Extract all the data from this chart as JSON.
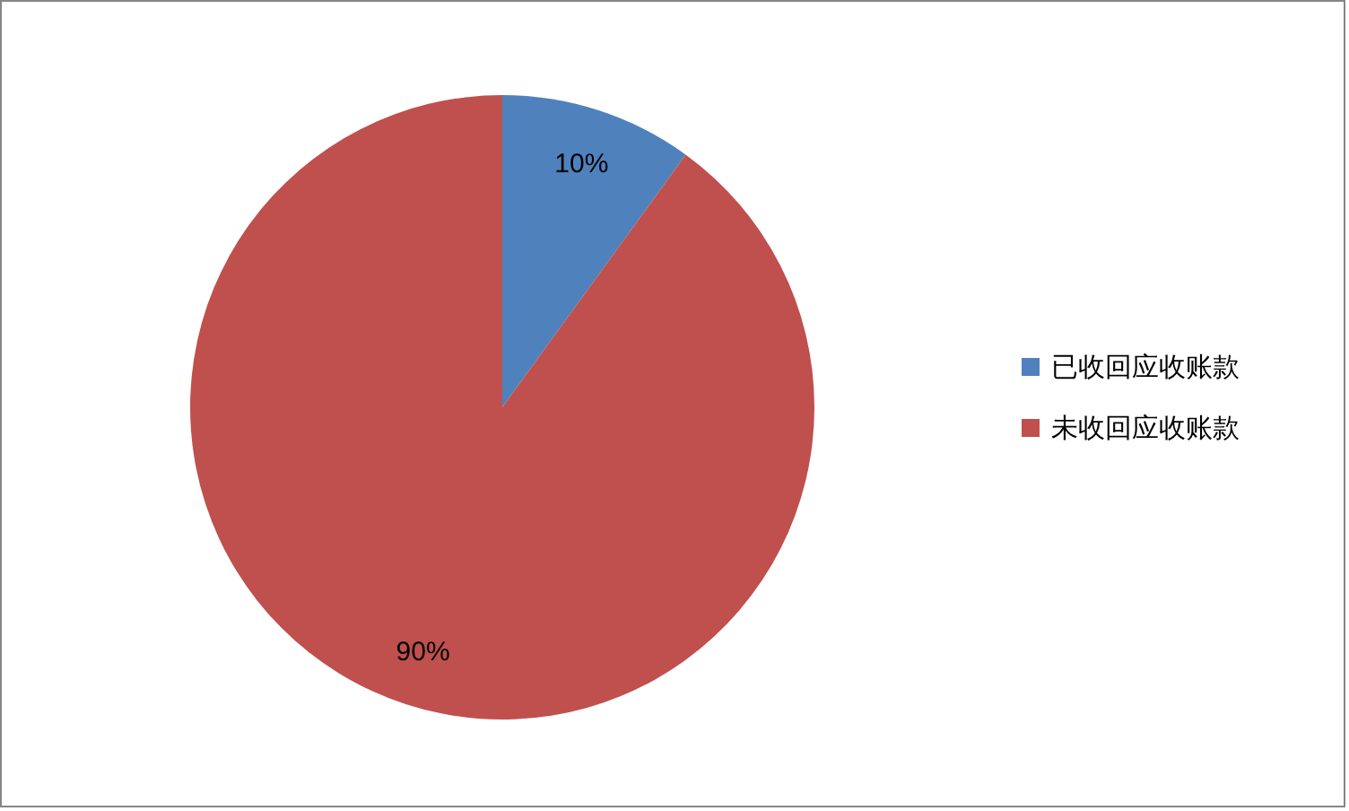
{
  "chart_data": {
    "type": "pie",
    "categories": [
      "已收回应收账款",
      "未收回应收账款"
    ],
    "values": [
      10,
      90
    ],
    "colors": [
      "#4f81bd",
      "#c0504d"
    ],
    "value_labels": [
      "10%",
      "90%"
    ],
    "legend": "right"
  }
}
